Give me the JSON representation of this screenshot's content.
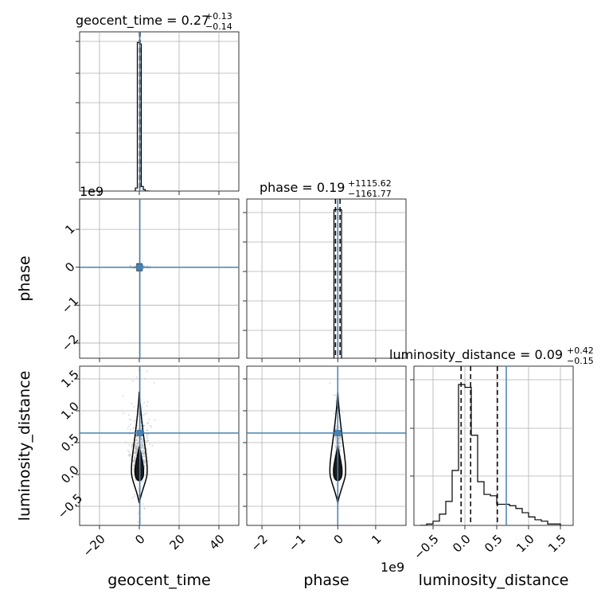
{
  "chart_data": {
    "type": "corner",
    "parameters": [
      "geocent_time",
      "phase",
      "luminosity_distance"
    ],
    "truth": {
      "geocent_time": 0.27,
      "phase": 0.0,
      "luminosity_distance": 0.65
    },
    "colors": {
      "truth": "#4682b4",
      "hist": "#000000",
      "grid": "#b0b0b0",
      "scatter": "#aaaaaa"
    },
    "titles": {
      "geocent_time": {
        "label": "geocent_time",
        "median": "0.27",
        "plus": "+0.13",
        "minus": "−0.14"
      },
      "phase": {
        "label": "phase",
        "median": "0.19",
        "plus": "+1115.62",
        "minus": "−1161.77"
      },
      "luminosity_distance": {
        "label": "luminosity_distance",
        "median": "0.09",
        "plus": "+0.42",
        "minus": "−0.15"
      }
    },
    "axis_labels": {
      "x": [
        "geocent_time",
        "phase",
        "luminosity_distance"
      ],
      "y": [
        "phase",
        "luminosity_distance"
      ]
    },
    "ranges": {
      "geocent_time": [
        -30,
        50
      ],
      "phase": [
        -2.4,
        1.8
      ],
      "luminosity_distance": [
        -0.8,
        1.7
      ]
    },
    "ticks": {
      "geocent_time": [
        -20,
        0,
        20,
        40
      ],
      "phase_x": [
        -2,
        -1,
        0,
        1
      ],
      "phase_y": [
        -2,
        -1,
        0,
        1
      ],
      "luminosity_distance": [
        -0.5,
        0.0,
        0.5,
        1.0,
        1.5
      ]
    },
    "tick_labels": {
      "geocent_time": [
        "−20",
        "0",
        "20",
        "40"
      ],
      "phase_x": [
        "−2",
        "−1",
        "0",
        "1"
      ],
      "phase_y": [
        "−2",
        "−1",
        "0",
        "1"
      ],
      "luminosity_distance": [
        "−0.5",
        "0.0",
        "0.5",
        "1.0",
        "1.5"
      ]
    },
    "offset_text": {
      "phase_y": "1e9",
      "phase_x": "1e9"
    },
    "hist_geocent_time": {
      "edges": [
        -2.0,
        -1.0,
        0.0,
        1.0,
        2.0,
        3.0,
        4.0,
        5.0
      ],
      "counts": [
        0.02,
        0.98,
        0.97,
        0.03,
        0.01,
        0.0,
        0.0
      ],
      "quantiles": [
        0.13,
        0.27,
        0.4
      ]
    },
    "hist_phase": {
      "edges": [
        -0.1,
        0.0,
        0.1
      ],
      "counts": [
        0.98,
        0.98
      ],
      "quantiles": [
        -0.06,
        0.0,
        0.06
      ]
    },
    "hist_luminosity_distance": {
      "edges": [
        -0.7,
        -0.6,
        -0.5,
        -0.4,
        -0.3,
        -0.2,
        -0.1,
        0.0,
        0.1,
        0.2,
        0.3,
        0.4,
        0.5,
        0.6,
        0.7,
        0.8,
        0.9,
        1.0,
        1.1,
        1.2,
        1.3,
        1.4,
        1.5
      ],
      "counts": [
        0.0,
        0.01,
        0.03,
        0.08,
        0.17,
        0.39,
        1.0,
        0.98,
        0.64,
        0.31,
        0.22,
        0.21,
        0.15,
        0.15,
        0.14,
        0.12,
        0.09,
        0.06,
        0.04,
        0.03,
        0.01,
        0.01
      ],
      "quantiles": [
        -0.06,
        0.09,
        0.51
      ]
    }
  }
}
